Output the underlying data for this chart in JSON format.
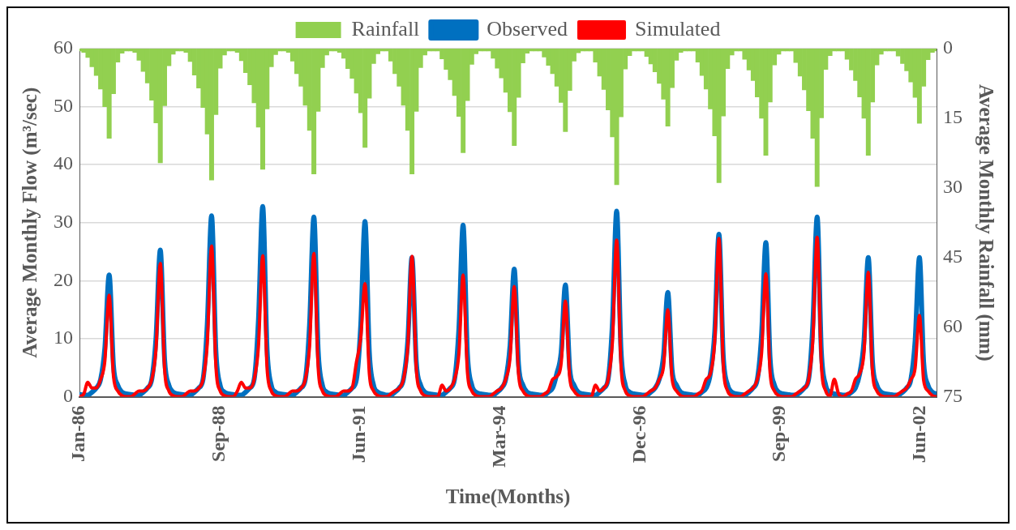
{
  "chart_data": {
    "type": "line",
    "xlabel": "Time(Months)",
    "ylabel": "Average Monthly Flow (m³/sec)",
    "y2label": "Average Monthly Rainfall (mm)",
    "x": [
      "1986-01",
      "1986-02",
      "1986-03",
      "1986-04",
      "1986-05",
      "1986-06",
      "1986-07",
      "1986-08",
      "1986-09",
      "1986-10",
      "1986-11",
      "1986-12",
      "1987-01",
      "1987-02",
      "1987-03",
      "1987-04",
      "1987-05",
      "1987-06",
      "1987-07",
      "1987-08",
      "1987-09",
      "1987-10",
      "1987-11",
      "1987-12",
      "1988-01",
      "1988-02",
      "1988-03",
      "1988-04",
      "1988-05",
      "1988-06",
      "1988-07",
      "1988-08",
      "1988-09",
      "1988-10",
      "1988-11",
      "1988-12",
      "1989-01",
      "1989-02",
      "1989-03",
      "1989-04",
      "1989-05",
      "1989-06",
      "1989-07",
      "1989-08",
      "1989-09",
      "1989-10",
      "1989-11",
      "1989-12",
      "1990-01",
      "1990-02",
      "1990-03",
      "1990-04",
      "1990-05",
      "1990-06",
      "1990-07",
      "1990-08",
      "1990-09",
      "1990-10",
      "1990-11",
      "1990-12",
      "1991-01",
      "1991-02",
      "1991-03",
      "1991-04",
      "1991-05",
      "1991-06",
      "1991-07",
      "1991-08",
      "1991-09",
      "1991-10",
      "1991-11",
      "1991-12",
      "1992-01",
      "1992-02",
      "1992-03",
      "1992-04",
      "1992-05",
      "1992-06",
      "1992-07",
      "1992-08",
      "1992-09",
      "1992-10",
      "1992-11",
      "1992-12",
      "1993-01",
      "1993-02",
      "1993-03",
      "1993-04",
      "1993-05",
      "1993-06",
      "1993-07",
      "1993-08",
      "1993-09",
      "1993-10",
      "1993-11",
      "1993-12",
      "1994-01",
      "1994-02",
      "1994-03",
      "1994-04",
      "1994-05",
      "1994-06",
      "1994-07",
      "1994-08",
      "1994-09",
      "1994-10",
      "1994-11",
      "1994-12",
      "1995-01",
      "1995-02",
      "1995-03",
      "1995-04",
      "1995-05",
      "1995-06",
      "1995-07",
      "1995-08",
      "1995-09",
      "1995-10",
      "1995-11",
      "1995-12",
      "1996-01",
      "1996-02",
      "1996-03",
      "1996-04",
      "1996-05",
      "1996-06",
      "1996-07",
      "1996-08",
      "1996-09",
      "1996-10",
      "1996-11",
      "1996-12",
      "1997-01",
      "1997-02",
      "1997-03",
      "1997-04",
      "1997-05",
      "1997-06",
      "1997-07",
      "1997-08",
      "1997-09",
      "1997-10",
      "1997-11",
      "1997-12",
      "1998-01",
      "1998-02",
      "1998-03",
      "1998-04",
      "1998-05",
      "1998-06",
      "1998-07",
      "1998-08",
      "1998-09",
      "1998-10",
      "1998-11",
      "1998-12",
      "1999-01",
      "1999-02",
      "1999-03",
      "1999-04",
      "1999-05",
      "1999-06",
      "1999-07",
      "1999-08",
      "1999-09",
      "1999-10",
      "1999-11",
      "1999-12",
      "2000-01",
      "2000-02",
      "2000-03",
      "2000-04",
      "2000-05",
      "2000-06",
      "2000-07",
      "2000-08",
      "2000-09",
      "2000-10",
      "2000-11",
      "2000-12",
      "2001-01",
      "2001-02",
      "2001-03",
      "2001-04",
      "2001-05",
      "2001-06",
      "2001-07",
      "2001-08",
      "2001-09",
      "2001-10",
      "2001-11",
      "2001-12",
      "2002-01",
      "2002-02",
      "2002-03",
      "2002-04",
      "2002-05",
      "2002-06",
      "2002-07",
      "2002-08",
      "2002-09",
      "2002-10"
    ],
    "series": [
      {
        "name": "Rainfall",
        "type": "bar",
        "axis": "y2",
        "color": "#92d050",
        "values": [
          0.5,
          0.8,
          1.9,
          3.9,
          5.8,
          8.7,
          12.5,
          19.3,
          9.7,
          2.9,
          1,
          0.5,
          0.5,
          0.8,
          2.5,
          4.9,
          7.4,
          11.1,
          16,
          24.6,
          12.3,
          3.7,
          1.2,
          0.5,
          0.5,
          0.8,
          2.8,
          5.7,
          8.5,
          12.7,
          18.4,
          28.3,
          14.2,
          4.2,
          1.4,
          0.5,
          0.5,
          0.8,
          2.6,
          5.2,
          7.8,
          11.7,
          16.9,
          26,
          13,
          3.9,
          1.3,
          0.5,
          0.5,
          0.8,
          2.7,
          5.4,
          8.1,
          12.2,
          17.6,
          27,
          13.5,
          4.1,
          1.4,
          0.5,
          0.5,
          0.8,
          2.1,
          4.3,
          6.4,
          9.6,
          13.8,
          21.3,
          10.7,
          3.2,
          1.1,
          0.5,
          0.5,
          2.7,
          5.4,
          8.1,
          12.2,
          17.6,
          27,
          13.5,
          4.1,
          1.4,
          0.5,
          0.5,
          0.5,
          2.2,
          4.5,
          6.7,
          10.1,
          14.6,
          22.4,
          11.2,
          3.4,
          1.1,
          0.5,
          0.5,
          0.5,
          2.1,
          4.2,
          6.3,
          9.4,
          13.6,
          20.9,
          10.5,
          3.1,
          1,
          0.5,
          0.5,
          0.5,
          1.8,
          3.6,
          5.4,
          8.1,
          11.6,
          17.9,
          9,
          2.7,
          0.9,
          0.5,
          0.5,
          0.5,
          2.9,
          5.9,
          8.8,
          13.2,
          19,
          29.3,
          14.7,
          4.4,
          1.5,
          0.5,
          0.5,
          0.5,
          1.7,
          3.3,
          5,
          7.5,
          10.9,
          16.7,
          8.4,
          2.5,
          0.8,
          0.5,
          0.5,
          0.5,
          2.9,
          5.8,
          8.7,
          13,
          18.8,
          28.9,
          14.5,
          4.3,
          1.4,
          0.5,
          0.5,
          2.3,
          4.6,
          6.9,
          10.4,
          15,
          23,
          11.5,
          3.5,
          1.2,
          0.5,
          0.5,
          0.5,
          3,
          5.9,
          8.9,
          13.4,
          19.3,
          29.7,
          14.9,
          4.5,
          1.5,
          0.5,
          0.5,
          0.5,
          2.3,
          4.6,
          6.9,
          10.4,
          15,
          23,
          11.5,
          3.5,
          1.2,
          0.5,
          0.5,
          0.5,
          1.6,
          3.2,
          4.8,
          7.2,
          10.5,
          16.1,
          8.1,
          2.4,
          0.8,
          0.5
        ]
      },
      {
        "name": "Observed",
        "color": "#0070c0",
        "values": [
          0.4,
          0.3,
          0.3,
          0.8,
          1.5,
          3,
          8.4,
          21,
          5.3,
          2,
          0.8,
          0.5,
          0.4,
          0.3,
          0.3,
          0.8,
          1.5,
          3,
          10.1,
          25.3,
          6.3,
          2,
          0.8,
          0.5,
          0.4,
          0.3,
          0.3,
          0.8,
          1.5,
          3,
          12.5,
          31.2,
          7.8,
          2,
          0.8,
          0.5,
          0.4,
          0.3,
          0.3,
          0.8,
          1.5,
          3,
          13.1,
          32.8,
          8.2,
          2,
          0.8,
          0.5,
          0.4,
          0.3,
          0.3,
          0.8,
          1.5,
          3,
          12.4,
          31,
          7.8,
          2,
          0.8,
          0.5,
          0.4,
          0.3,
          0.3,
          0.8,
          1.5,
          3,
          12.1,
          30.2,
          7.6,
          2,
          0.8,
          0.5,
          0.3,
          0.3,
          0.8,
          1.5,
          3,
          9.6,
          24,
          6,
          2,
          0.8,
          0.5,
          0.4,
          0.3,
          0.3,
          0.8,
          1.5,
          3,
          11.8,
          29.6,
          7.4,
          2,
          0.8,
          0.5,
          0.4,
          0.3,
          0.3,
          0.8,
          1.5,
          3,
          8.8,
          22,
          5.5,
          2,
          0.8,
          0.5,
          0.4,
          0.3,
          0.3,
          0.8,
          1.5,
          4,
          7.7,
          19.3,
          4.8,
          2,
          0.8,
          0.5,
          0.4,
          0.3,
          0.3,
          0.8,
          1.5,
          3,
          12.8,
          32,
          8,
          2,
          0.8,
          0.5,
          0.4,
          0.3,
          0.3,
          0.8,
          1.5,
          3,
          7.2,
          18,
          4.5,
          2,
          0.8,
          0.5,
          0.4,
          0.3,
          0.3,
          0.8,
          1.5,
          4,
          11.2,
          28,
          7,
          2,
          0.8,
          0.5,
          0.4,
          0.3,
          0.8,
          1.5,
          3,
          10.6,
          26.6,
          6.7,
          2,
          0.8,
          0.5,
          0.4,
          0.3,
          0.3,
          0.8,
          1.5,
          3,
          12.4,
          31,
          7.8,
          2,
          0.8,
          0.5,
          0.4,
          0.3,
          0.3,
          0.8,
          1.5,
          4,
          9.6,
          24,
          6,
          2,
          0.8,
          0.5,
          0.4,
          0.3,
          0.3,
          0.8,
          1.5,
          3,
          9.6,
          24,
          6,
          2,
          0.8,
          0.5
        ]
      },
      {
        "name": "Simulated",
        "color": "#ff0000",
        "values": [
          0,
          0.5,
          2.5,
          1.5,
          1.5,
          3,
          6.1,
          17.5,
          3.5,
          1,
          0.2,
          0,
          0,
          0.5,
          1,
          1,
          1.5,
          3,
          8.1,
          23,
          4.6,
          1,
          0.2,
          0,
          0,
          0.5,
          1,
          1,
          1.5,
          3,
          9.1,
          26,
          5.2,
          1,
          0.2,
          0,
          0,
          1,
          2.5,
          1.5,
          1.5,
          3,
          8.5,
          24.3,
          4.9,
          1,
          0.2,
          0,
          0,
          0.5,
          1,
          1,
          1.5,
          3,
          8.6,
          24.7,
          4.9,
          1,
          0.2,
          0,
          0,
          0.5,
          1,
          1,
          1.5,
          6,
          10,
          19.5,
          3.9,
          1,
          0.2,
          0,
          0,
          0.5,
          1,
          1.5,
          3,
          8.5,
          24.2,
          4.8,
          1,
          0.2,
          0,
          0,
          0,
          2,
          1,
          1.5,
          3,
          7.4,
          21,
          4.2,
          1,
          0.2,
          0,
          0,
          0,
          0.5,
          1,
          1.5,
          3,
          6.7,
          19,
          3.8,
          1,
          0.2,
          0,
          0,
          0,
          0.5,
          1,
          3,
          3.5,
          5.8,
          16.5,
          3.3,
          1,
          0.2,
          0,
          0,
          0,
          2,
          1,
          1.5,
          3,
          9.5,
          27,
          5.4,
          1,
          0.2,
          0,
          0,
          0,
          0.5,
          1,
          1.5,
          3,
          5.3,
          15,
          3,
          1,
          0.2,
          0,
          0,
          0,
          0.5,
          1,
          3,
          4,
          9.6,
          27.3,
          5.5,
          1,
          0.2,
          0,
          0,
          0.5,
          1,
          1.5,
          3,
          7.4,
          21.2,
          4.2,
          1,
          0.2,
          0,
          0,
          0,
          0.5,
          1,
          1.5,
          3,
          9.6,
          27.5,
          5.5,
          1,
          0.2,
          3,
          0.5,
          0,
          0.5,
          1,
          3,
          4,
          7.5,
          21.5,
          4.3,
          1,
          0.2,
          0,
          0,
          0,
          0.5,
          1,
          1.5,
          3,
          4.9,
          14,
          2.8,
          1,
          0.2,
          0
        ]
      }
    ],
    "xlim": [
      "1986-01",
      "2002-10"
    ],
    "xticks": [
      {
        "value": "1986-01-01",
        "label": "Jan-86"
      },
      {
        "value": "1988-09-27",
        "label": "Sep-88"
      },
      {
        "value": "1991-06-24",
        "label": "Jun-91"
      },
      {
        "value": "1994-03-20",
        "label": "Mar-94"
      },
      {
        "value": "1996-12-15",
        "label": "Dec-96"
      },
      {
        "value": "1999-09-11",
        "label": "Sep-99"
      },
      {
        "value": "2002-06-07",
        "label": "Jun-02"
      }
    ],
    "ylim": [
      0,
      60
    ],
    "yticks": [
      0,
      10,
      20,
      30,
      40,
      50,
      60
    ],
    "y2lim": [
      75,
      0
    ],
    "y2ticks": [
      0,
      15,
      30,
      45,
      60,
      75
    ],
    "grid": "y",
    "legend": "top",
    "marker": "none"
  }
}
